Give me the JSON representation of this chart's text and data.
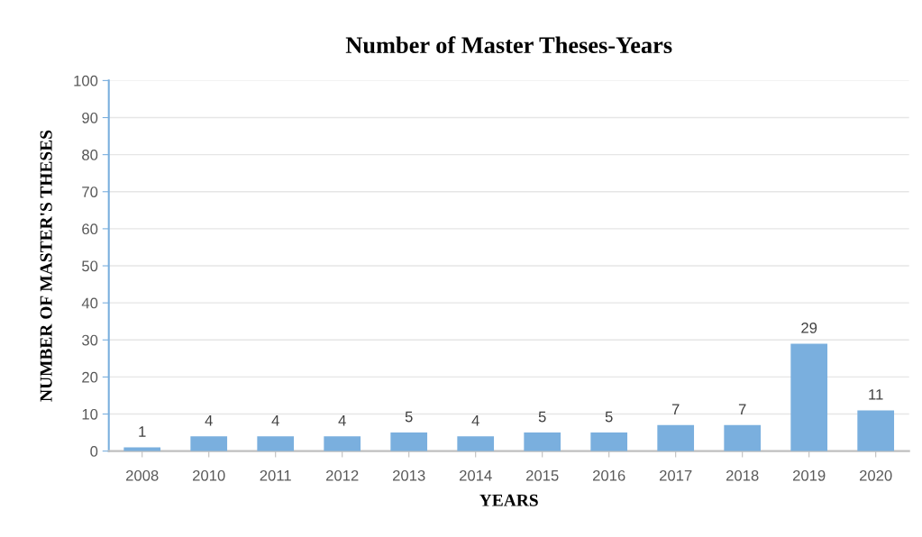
{
  "chart_data": {
    "type": "bar",
    "title": "Number of Master Theses-Years",
    "xlabel": "YEARS",
    "ylabel": "NUMBER OF MASTER'S THESES",
    "categories": [
      "2008",
      "2010",
      "2011",
      "2012",
      "2013",
      "2014",
      "2015",
      "2016",
      "2017",
      "2018",
      "2019",
      "2020"
    ],
    "values": [
      1,
      4,
      4,
      4,
      5,
      4,
      5,
      5,
      7,
      7,
      29,
      11
    ],
    "color": "#7aafde",
    "ylim": [
      0,
      100
    ],
    "yticks": [
      0,
      10,
      20,
      30,
      40,
      50,
      60,
      70,
      80,
      90,
      100
    ],
    "grid": "y",
    "data_labels": true
  }
}
